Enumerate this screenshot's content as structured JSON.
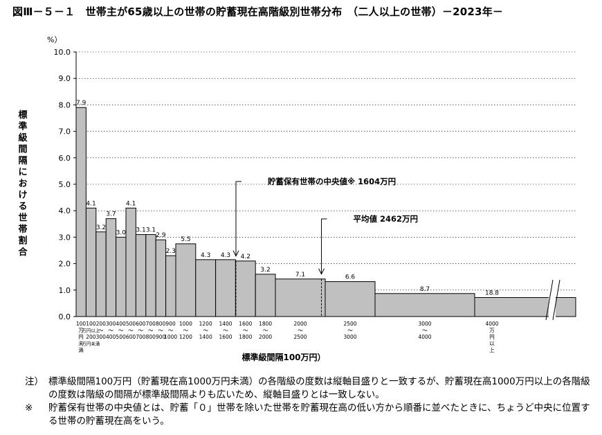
{
  "title": "図Ⅲ－５－１　世帯主が65歳以上の世帯の貯蓄現在高階級別世帯分布　（二人以上の世帯）－2023年－",
  "chart_data": {
    "type": "bar",
    "title": "図Ⅲ－５－１　世帯主が65歳以上の世帯の貯蓄現在高階級別世帯分布　（二人以上の世帯）－2023年－",
    "ylabel": "標準級間隔における世帯割合",
    "yunit": "%）",
    "xlabel": "標準級間隔100万円）",
    "ylim": [
      0,
      10
    ],
    "yticks": [
      "0.0",
      "1.0",
      "2.0",
      "3.0",
      "4.0",
      "5.0",
      "6.0",
      "7.0",
      "8.0",
      "9.0",
      "10.0"
    ],
    "bars": [
      {
        "from": 0,
        "to": 100,
        "value": 7.9,
        "label": "7.9"
      },
      {
        "from": 100,
        "to": 200,
        "value": 4.1,
        "label": "4.1"
      },
      {
        "from": 200,
        "to": 300,
        "value": 3.2,
        "label": "3.2"
      },
      {
        "from": 300,
        "to": 400,
        "value": 3.7,
        "label": "3.7"
      },
      {
        "from": 400,
        "to": 500,
        "value": 3.0,
        "label": "3.0"
      },
      {
        "from": 500,
        "to": 600,
        "value": 4.1,
        "label": "4.1"
      },
      {
        "from": 600,
        "to": 700,
        "value": 3.1,
        "label": "3.1"
      },
      {
        "from": 700,
        "to": 800,
        "value": 3.1,
        "label": "3.1"
      },
      {
        "from": 800,
        "to": 900,
        "value": 2.9,
        "label": "2.9"
      },
      {
        "from": 900,
        "to": 1000,
        "value": 2.3,
        "label": "2.3"
      },
      {
        "from": 1000,
        "to": 1200,
        "value": 2.75,
        "label": "5.5"
      },
      {
        "from": 1200,
        "to": 1400,
        "value": 2.15,
        "label": "4.3"
      },
      {
        "from": 1400,
        "to": 1600,
        "value": 2.15,
        "label": "4.3"
      },
      {
        "from": 1600,
        "to": 1800,
        "value": 2.1,
        "label": "4.2"
      },
      {
        "from": 1800,
        "to": 2000,
        "value": 1.6,
        "label": "3.2"
      },
      {
        "from": 2000,
        "to": 2500,
        "value": 1.42,
        "label": "7.1"
      },
      {
        "from": 2500,
        "to": 3000,
        "value": 1.32,
        "label": "6.6"
      },
      {
        "from": 3000,
        "to": 4000,
        "value": 0.87,
        "label": "8.7"
      },
      {
        "from": 4000,
        "to": null,
        "value": 0.72,
        "label": "18.8"
      }
    ],
    "x_tick_labels": [
      [
        "100",
        "万",
        "円",
        "未",
        "満"
      ],
      [
        "100",
        "万円以上",
        "200",
        "万円未満"
      ],
      [
        "200",
        "～",
        "300"
      ],
      [
        "300",
        "～",
        "400"
      ],
      [
        "400",
        "～",
        "500"
      ],
      [
        "500",
        "～",
        "600"
      ],
      [
        "600",
        "～",
        "700"
      ],
      [
        "700",
        "～",
        "800"
      ],
      [
        "800",
        "～",
        "900"
      ],
      [
        "900",
        "～",
        "1000"
      ],
      [
        "1000",
        "～",
        "1200"
      ],
      [
        "1200",
        "～",
        "1400"
      ],
      [
        "1400",
        "～",
        "1600"
      ],
      [
        "1600",
        "～",
        "1800"
      ],
      [
        "1800",
        "～",
        "2000"
      ],
      [
        "2000",
        "～",
        "2500"
      ],
      [
        "2500",
        "～",
        "3000"
      ],
      [
        "3000",
        "～",
        "4000"
      ],
      [
        "4000",
        "万",
        "円",
        "以",
        "上"
      ]
    ],
    "annotations": [
      {
        "name": "median",
        "text": "貯蓄保有世帯の中央値※ 1604万円",
        "x": 1604
      },
      {
        "name": "mean",
        "text": "平均値 2462万円",
        "x": 2462
      }
    ]
  },
  "notes": [
    {
      "mark": "注）",
      "text": "標準級間隔100万円（貯蓄現在高1000万円未満）の各階級の度数は縦軸目盛りと一致するが、貯蓄現在高1000万円以上の各階級の度数は階級の間隔が標準級間隔よりも広いため、縦軸目盛りとは一致しない。"
    },
    {
      "mark": "※",
      "text": "貯蓄保有世帯の中央値とは、貯蓄「０」世帯を除いた世帯を貯蓄現在高の低い方から順番に並べたときに、ちょうど中央に位置する世帯の貯蓄現在高をいう。"
    }
  ],
  "colors": {
    "bar": "#c0c0c0",
    "bar_stroke": "#000000",
    "grid": "#000000"
  }
}
